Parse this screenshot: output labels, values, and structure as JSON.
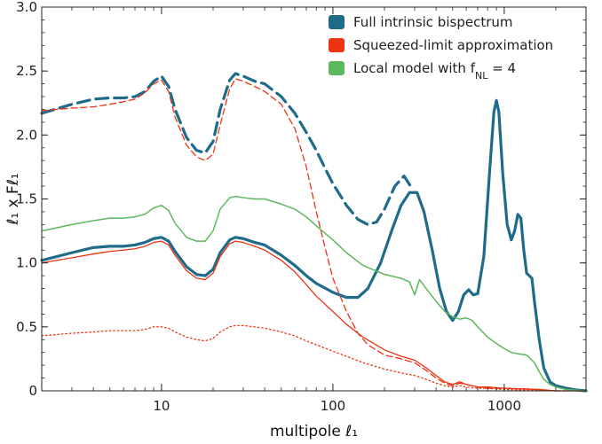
{
  "chart_data": {
    "type": "line",
    "title": "",
    "xlabel": "multipole ℓ₁",
    "ylabel": "ℓ₁ x Fℓ₁",
    "xscale": "log",
    "xlim": [
      2,
      3000
    ],
    "ylim": [
      0,
      3.0
    ],
    "x_ticks": [
      10,
      100,
      1000
    ],
    "x_tick_labels": [
      "10",
      "100",
      "1000"
    ],
    "y_ticks": [
      0,
      0.5,
      1.0,
      1.5,
      2.0,
      2.5,
      3.0
    ],
    "y_tick_labels": [
      "0",
      "0.5",
      "1.0",
      "1.5",
      "2.0",
      "2.5",
      "3.0"
    ],
    "grid": false,
    "legend_position": "top-right",
    "legend": [
      {
        "label_main": "Full intrinsic bispectrum",
        "label_sub": "",
        "label_tail": "",
        "color": "#1f6b8a"
      },
      {
        "label_main": "Squeezed-limit approximation",
        "label_sub": "",
        "label_tail": "",
        "color": "#ee3311"
      },
      {
        "label_main": "Local model with f",
        "label_sub": "NL",
        "label_tail": " = 4",
        "color": "#5cb85c"
      }
    ],
    "series": [
      {
        "name": "Full intrinsic bispectrum",
        "color": "#1f6b8a",
        "width": 3.2,
        "dash": "14,7",
        "points": [
          [
            2,
            2.17
          ],
          [
            3,
            2.24
          ],
          [
            4,
            2.28
          ],
          [
            5,
            2.29
          ],
          [
            6,
            2.29
          ],
          [
            7,
            2.3
          ],
          [
            8,
            2.34
          ],
          [
            9,
            2.42
          ],
          [
            10,
            2.46
          ],
          [
            11,
            2.38
          ],
          [
            12,
            2.2
          ],
          [
            14,
            1.98
          ],
          [
            16,
            1.88
          ],
          [
            18,
            1.86
          ],
          [
            20,
            1.95
          ],
          [
            22,
            2.2
          ],
          [
            25,
            2.43
          ],
          [
            27,
            2.48
          ],
          [
            30,
            2.46
          ],
          [
            35,
            2.42
          ],
          [
            40,
            2.4
          ],
          [
            50,
            2.3
          ],
          [
            60,
            2.17
          ],
          [
            70,
            2.02
          ],
          [
            80,
            1.88
          ],
          [
            90,
            1.74
          ],
          [
            100,
            1.62
          ],
          [
            120,
            1.45
          ],
          [
            140,
            1.34
          ],
          [
            160,
            1.3
          ],
          [
            180,
            1.32
          ],
          [
            200,
            1.42
          ],
          [
            230,
            1.6
          ],
          [
            260,
            1.68
          ],
          [
            290,
            1.58
          ]
        ]
      },
      {
        "name": "Full intrinsic bispectrum",
        "color": "#1f6b8a",
        "width": 3.2,
        "dash": "",
        "points": [
          [
            2,
            1.02
          ],
          [
            3,
            1.08
          ],
          [
            4,
            1.12
          ],
          [
            5,
            1.13
          ],
          [
            6,
            1.13
          ],
          [
            7,
            1.14
          ],
          [
            8,
            1.16
          ],
          [
            9,
            1.19
          ],
          [
            10,
            1.2
          ],
          [
            11,
            1.17
          ],
          [
            12,
            1.09
          ],
          [
            14,
            0.97
          ],
          [
            16,
            0.91
          ],
          [
            18,
            0.9
          ],
          [
            20,
            0.95
          ],
          [
            22,
            1.08
          ],
          [
            25,
            1.18
          ],
          [
            27,
            1.2
          ],
          [
            30,
            1.19
          ],
          [
            35,
            1.16
          ],
          [
            40,
            1.14
          ],
          [
            50,
            1.06
          ],
          [
            60,
            0.98
          ],
          [
            70,
            0.9
          ],
          [
            80,
            0.84
          ],
          [
            100,
            0.77
          ],
          [
            120,
            0.73
          ],
          [
            140,
            0.73
          ],
          [
            160,
            0.8
          ],
          [
            190,
            1.0
          ],
          [
            220,
            1.25
          ],
          [
            250,
            1.45
          ],
          [
            280,
            1.55
          ],
          [
            310,
            1.55
          ],
          [
            340,
            1.4
          ],
          [
            380,
            1.1
          ],
          [
            420,
            0.8
          ],
          [
            460,
            0.62
          ],
          [
            500,
            0.55
          ],
          [
            540,
            0.62
          ],
          [
            580,
            0.75
          ],
          [
            620,
            0.79
          ],
          [
            660,
            0.75
          ],
          [
            700,
            0.76
          ],
          [
            760,
            1.05
          ],
          [
            820,
            1.7
          ],
          [
            870,
            2.18
          ],
          [
            900,
            2.27
          ],
          [
            930,
            2.18
          ],
          [
            980,
            1.7
          ],
          [
            1040,
            1.3
          ],
          [
            1100,
            1.18
          ],
          [
            1150,
            1.25
          ],
          [
            1200,
            1.38
          ],
          [
            1250,
            1.35
          ],
          [
            1300,
            1.1
          ],
          [
            1350,
            0.92
          ],
          [
            1400,
            0.9
          ],
          [
            1450,
            0.88
          ],
          [
            1500,
            0.7
          ],
          [
            1600,
            0.4
          ],
          [
            1700,
            0.18
          ],
          [
            1850,
            0.07
          ],
          [
            2000,
            0.04
          ],
          [
            2300,
            0.02
          ],
          [
            2700,
            0.005
          ],
          [
            3000,
            0
          ]
        ]
      },
      {
        "name": "Squeezed-limit approximation",
        "color": "#ee3311",
        "width": 1.3,
        "dash": "7,4",
        "points": [
          [
            2,
            2.19
          ],
          [
            3,
            2.21
          ],
          [
            4,
            2.22
          ],
          [
            5,
            2.24
          ],
          [
            6,
            2.26
          ],
          [
            7,
            2.28
          ],
          [
            8,
            2.33
          ],
          [
            9,
            2.4
          ],
          [
            10,
            2.43
          ],
          [
            11,
            2.34
          ],
          [
            12,
            2.14
          ],
          [
            14,
            1.92
          ],
          [
            16,
            1.83
          ],
          [
            18,
            1.8
          ],
          [
            20,
            1.85
          ],
          [
            22,
            2.08
          ],
          [
            25,
            2.36
          ],
          [
            27,
            2.44
          ],
          [
            30,
            2.42
          ],
          [
            35,
            2.38
          ],
          [
            40,
            2.34
          ],
          [
            50,
            2.24
          ],
          [
            60,
            2.05
          ],
          [
            70,
            1.75
          ],
          [
            80,
            1.4
          ],
          [
            90,
            1.12
          ],
          [
            100,
            0.88
          ],
          [
            120,
            0.62
          ],
          [
            140,
            0.45
          ],
          [
            160,
            0.36
          ],
          [
            200,
            0.28
          ],
          [
            250,
            0.25
          ],
          [
            300,
            0.22
          ],
          [
            350,
            0.16
          ],
          [
            400,
            0.1
          ],
          [
            450,
            0.06
          ],
          [
            500,
            0.04
          ],
          [
            550,
            0.06
          ],
          [
            600,
            0.05
          ],
          [
            700,
            0.03
          ],
          [
            800,
            0.02
          ],
          [
            1000,
            0.02
          ],
          [
            1300,
            0.015
          ],
          [
            1600,
            0.01
          ],
          [
            2000,
            0
          ],
          [
            3000,
            0
          ]
        ]
      },
      {
        "name": "Squeezed-limit approximation",
        "color": "#ee3311",
        "width": 1.3,
        "dash": "",
        "points": [
          [
            2,
            1.0
          ],
          [
            3,
            1.04
          ],
          [
            4,
            1.07
          ],
          [
            5,
            1.09
          ],
          [
            6,
            1.1
          ],
          [
            7,
            1.11
          ],
          [
            8,
            1.13
          ],
          [
            9,
            1.16
          ],
          [
            10,
            1.17
          ],
          [
            11,
            1.14
          ],
          [
            12,
            1.06
          ],
          [
            14,
            0.94
          ],
          [
            16,
            0.88
          ],
          [
            18,
            0.87
          ],
          [
            20,
            0.92
          ],
          [
            22,
            1.05
          ],
          [
            25,
            1.15
          ],
          [
            27,
            1.17
          ],
          [
            30,
            1.16
          ],
          [
            35,
            1.13
          ],
          [
            40,
            1.1
          ],
          [
            50,
            1.02
          ],
          [
            60,
            0.93
          ],
          [
            70,
            0.83
          ],
          [
            80,
            0.74
          ],
          [
            100,
            0.62
          ],
          [
            120,
            0.52
          ],
          [
            150,
            0.42
          ],
          [
            200,
            0.32
          ],
          [
            250,
            0.27
          ],
          [
            300,
            0.24
          ],
          [
            350,
            0.18
          ],
          [
            400,
            0.12
          ],
          [
            450,
            0.07
          ],
          [
            500,
            0.05
          ],
          [
            550,
            0.07
          ],
          [
            600,
            0.05
          ],
          [
            700,
            0.03
          ],
          [
            800,
            0.03
          ],
          [
            1000,
            0.02
          ],
          [
            1300,
            0.015
          ],
          [
            1600,
            0.01
          ],
          [
            2000,
            0
          ],
          [
            3000,
            0
          ]
        ]
      },
      {
        "name": "Squeezed-limit approximation",
        "color": "#ee3311",
        "width": 1.3,
        "dash": "1.5,3",
        "points": [
          [
            2,
            0.43
          ],
          [
            3,
            0.45
          ],
          [
            4,
            0.46
          ],
          [
            5,
            0.47
          ],
          [
            6,
            0.47
          ],
          [
            7,
            0.47
          ],
          [
            8,
            0.48
          ],
          [
            9,
            0.5
          ],
          [
            10,
            0.5
          ],
          [
            11,
            0.49
          ],
          [
            12,
            0.46
          ],
          [
            14,
            0.42
          ],
          [
            16,
            0.4
          ],
          [
            18,
            0.39
          ],
          [
            20,
            0.41
          ],
          [
            22,
            0.46
          ],
          [
            25,
            0.5
          ],
          [
            27,
            0.51
          ],
          [
            30,
            0.51
          ],
          [
            35,
            0.5
          ],
          [
            40,
            0.49
          ],
          [
            50,
            0.46
          ],
          [
            60,
            0.43
          ],
          [
            70,
            0.39
          ],
          [
            80,
            0.36
          ],
          [
            100,
            0.31
          ],
          [
            120,
            0.27
          ],
          [
            150,
            0.22
          ],
          [
            200,
            0.17
          ],
          [
            250,
            0.14
          ],
          [
            300,
            0.12
          ],
          [
            350,
            0.09
          ],
          [
            400,
            0.06
          ],
          [
            450,
            0.04
          ],
          [
            500,
            0.03
          ],
          [
            550,
            0.04
          ],
          [
            600,
            0.03
          ],
          [
            700,
            0.02
          ],
          [
            800,
            0.02
          ],
          [
            1000,
            0.01
          ],
          [
            1500,
            0.005
          ],
          [
            2000,
            0
          ],
          [
            3000,
            0
          ]
        ]
      },
      {
        "name": "Local model with fNL = 4",
        "color": "#5cb85c",
        "width": 1.5,
        "dash": "",
        "points": [
          [
            2,
            1.25
          ],
          [
            3,
            1.3
          ],
          [
            4,
            1.33
          ],
          [
            5,
            1.35
          ],
          [
            6,
            1.35
          ],
          [
            7,
            1.36
          ],
          [
            8,
            1.38
          ],
          [
            9,
            1.43
          ],
          [
            10,
            1.45
          ],
          [
            11,
            1.41
          ],
          [
            12,
            1.31
          ],
          [
            14,
            1.2
          ],
          [
            16,
            1.17
          ],
          [
            18,
            1.17
          ],
          [
            20,
            1.25
          ],
          [
            22,
            1.42
          ],
          [
            25,
            1.51
          ],
          [
            27,
            1.52
          ],
          [
            30,
            1.51
          ],
          [
            35,
            1.5
          ],
          [
            40,
            1.5
          ],
          [
            50,
            1.46
          ],
          [
            60,
            1.42
          ],
          [
            70,
            1.36
          ],
          [
            80,
            1.29
          ],
          [
            100,
            1.18
          ],
          [
            120,
            1.08
          ],
          [
            150,
            0.98
          ],
          [
            200,
            0.91
          ],
          [
            250,
            0.88
          ],
          [
            280,
            0.85
          ],
          [
            300,
            0.75
          ],
          [
            320,
            0.87
          ],
          [
            350,
            0.8
          ],
          [
            400,
            0.7
          ],
          [
            450,
            0.62
          ],
          [
            500,
            0.58
          ],
          [
            550,
            0.56
          ],
          [
            600,
            0.57
          ],
          [
            650,
            0.55
          ],
          [
            700,
            0.5
          ],
          [
            800,
            0.42
          ],
          [
            900,
            0.37
          ],
          [
            1000,
            0.33
          ],
          [
            1100,
            0.3
          ],
          [
            1200,
            0.29
          ],
          [
            1350,
            0.28
          ],
          [
            1500,
            0.22
          ],
          [
            1600,
            0.15
          ],
          [
            1700,
            0.09
          ],
          [
            1850,
            0.05
          ],
          [
            2000,
            0.03
          ],
          [
            2300,
            0.01
          ],
          [
            3000,
            0
          ]
        ]
      }
    ]
  }
}
